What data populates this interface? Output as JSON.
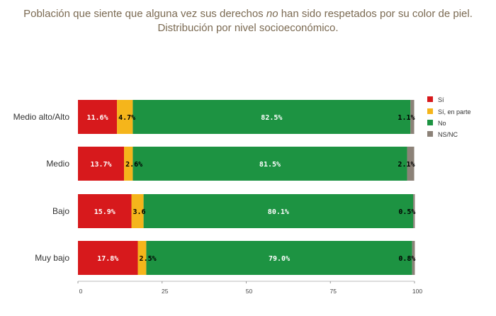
{
  "title": {
    "before": "Población que siente que alguna vez sus derechos ",
    "emph": "no",
    "after": " han sido respetados por su color de piel.",
    "line2": "Distribución  por nivel socioeconómico."
  },
  "colors": {
    "si": "#d7191c",
    "si_parte": "#f5b51b",
    "no": "#1d9342",
    "nsnc": "#8c8278"
  },
  "chart_data": {
    "type": "bar",
    "orientation": "horizontal",
    "stacked": true,
    "title": "Población que siente que alguna vez sus derechos no han sido respetados por su color de piel. Distribución  por nivel socioeconómico.",
    "categories": [
      "Medio alto/Alto",
      "Medio",
      "Bajo",
      "Muy bajo"
    ],
    "series": [
      {
        "name": "Sí",
        "values": [
          11.6,
          13.7,
          15.9,
          17.8
        ],
        "labels": [
          "11.6%",
          "13.7%",
          "15.9%",
          "17.8%"
        ],
        "label_color": "#ffffff"
      },
      {
        "name": "Sí, en parte",
        "values": [
          4.7,
          2.6,
          3.6,
          2.5
        ],
        "labels": [
          "4.7%",
          "2.6%",
          "3.6",
          "2.5%"
        ],
        "label_color": "#000000"
      },
      {
        "name": "No",
        "values": [
          82.5,
          81.5,
          80.1,
          79.0
        ],
        "labels": [
          "82.5%",
          "81.5%",
          "80.1%",
          "79.0%"
        ],
        "label_color": "#ffffff"
      },
      {
        "name": "NS/NC",
        "values": [
          1.1,
          2.1,
          0.5,
          0.8
        ],
        "labels": [
          "1.1%",
          "2.1%",
          "0.5%",
          "0.8%"
        ],
        "label_color": "#000000"
      }
    ],
    "xlim": [
      0,
      100
    ],
    "xticks": [
      0,
      25,
      50,
      75,
      100
    ],
    "legend": "right",
    "grid": false
  }
}
